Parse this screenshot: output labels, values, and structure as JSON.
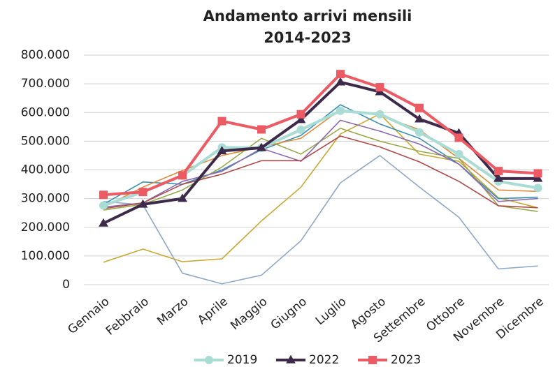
{
  "chart_data": {
    "type": "line",
    "title": [
      "Andamento arrivi mensili",
      "2014-2023"
    ],
    "categories": [
      "Gennaio",
      "Febbraio",
      "Marzo",
      "Aprile",
      "Maggio",
      "Giugno",
      "Luglio",
      "Agosto",
      "Settembre",
      "Ottobre",
      "Novembre",
      "Dicembre"
    ],
    "series": [
      {
        "color": "#8fa8c8",
        "values": [
          290000,
          278000,
          40000,
          3000,
          33000,
          153000,
          355000,
          450000,
          340000,
          235000,
          55000,
          65000
        ]
      },
      {
        "color": "#c8a832",
        "values": [
          78000,
          124000,
          80000,
          90000,
          222000,
          340000,
          525000,
          595000,
          455000,
          430000,
          303000,
          268000
        ]
      },
      {
        "color": "#3a8fb0",
        "values": [
          280000,
          358000,
          350000,
          400000,
          470000,
          520000,
          627000,
          560000,
          510000,
          420000,
          300000,
          305000
        ]
      },
      {
        "color": "#e08a3a",
        "values": [
          270000,
          340000,
          398000,
          450000,
          480000,
          510000,
          610000,
          590000,
          540000,
          440000,
          330000,
          325000
        ]
      },
      {
        "color": "#9aa84a",
        "values": [
          260000,
          280000,
          330000,
          410000,
          510000,
          455000,
          545000,
          500000,
          465000,
          440000,
          275000,
          255000
        ]
      },
      {
        "color": "#8a6ab0",
        "values": [
          270000,
          285000,
          360000,
          395000,
          475000,
          430000,
          573000,
          535000,
          490000,
          420000,
          290000,
          300000
        ]
      },
      {
        "color": "#b04a4a",
        "values": [
          265000,
          285000,
          350000,
          385000,
          432000,
          432000,
          518000,
          480000,
          428000,
          360000,
          275000,
          268000
        ]
      },
      {
        "name": "2019",
        "color": "#a8dcd4",
        "marker": "circle",
        "values": [
          276000,
          323000,
          380000,
          478000,
          477000,
          540000,
          606000,
          594000,
          531000,
          455000,
          360000,
          337000
        ]
      },
      {
        "name": "2022",
        "color": "#3d2a4a",
        "marker": "triangle",
        "values": [
          214000,
          280000,
          300000,
          466000,
          477000,
          575000,
          706000,
          672000,
          577000,
          528000,
          370000,
          370000
        ]
      },
      {
        "name": "2023",
        "color": "#ec5a64",
        "marker": "square",
        "values": [
          313000,
          323000,
          381000,
          570000,
          541000,
          594000,
          734000,
          688000,
          616000,
          512000,
          396000,
          388000
        ]
      }
    ],
    "ylim": [
      0,
      800000
    ],
    "yticks": [
      0,
      {
        "value": 100000,
        "label": "100.000"
      },
      {
        "value": 200000,
        "label": "200.000"
      },
      {
        "value": 300000,
        "label": "300.000"
      },
      {
        "value": 400000,
        "label": "400.000"
      },
      {
        "value": 500000,
        "label": "500.000"
      },
      {
        "value": 600000,
        "label": "600.000"
      },
      {
        "value": 700000,
        "label": "700.000"
      },
      {
        "value": 800000,
        "label": "800.000"
      }
    ],
    "grid": true,
    "legend": "bottom"
  }
}
